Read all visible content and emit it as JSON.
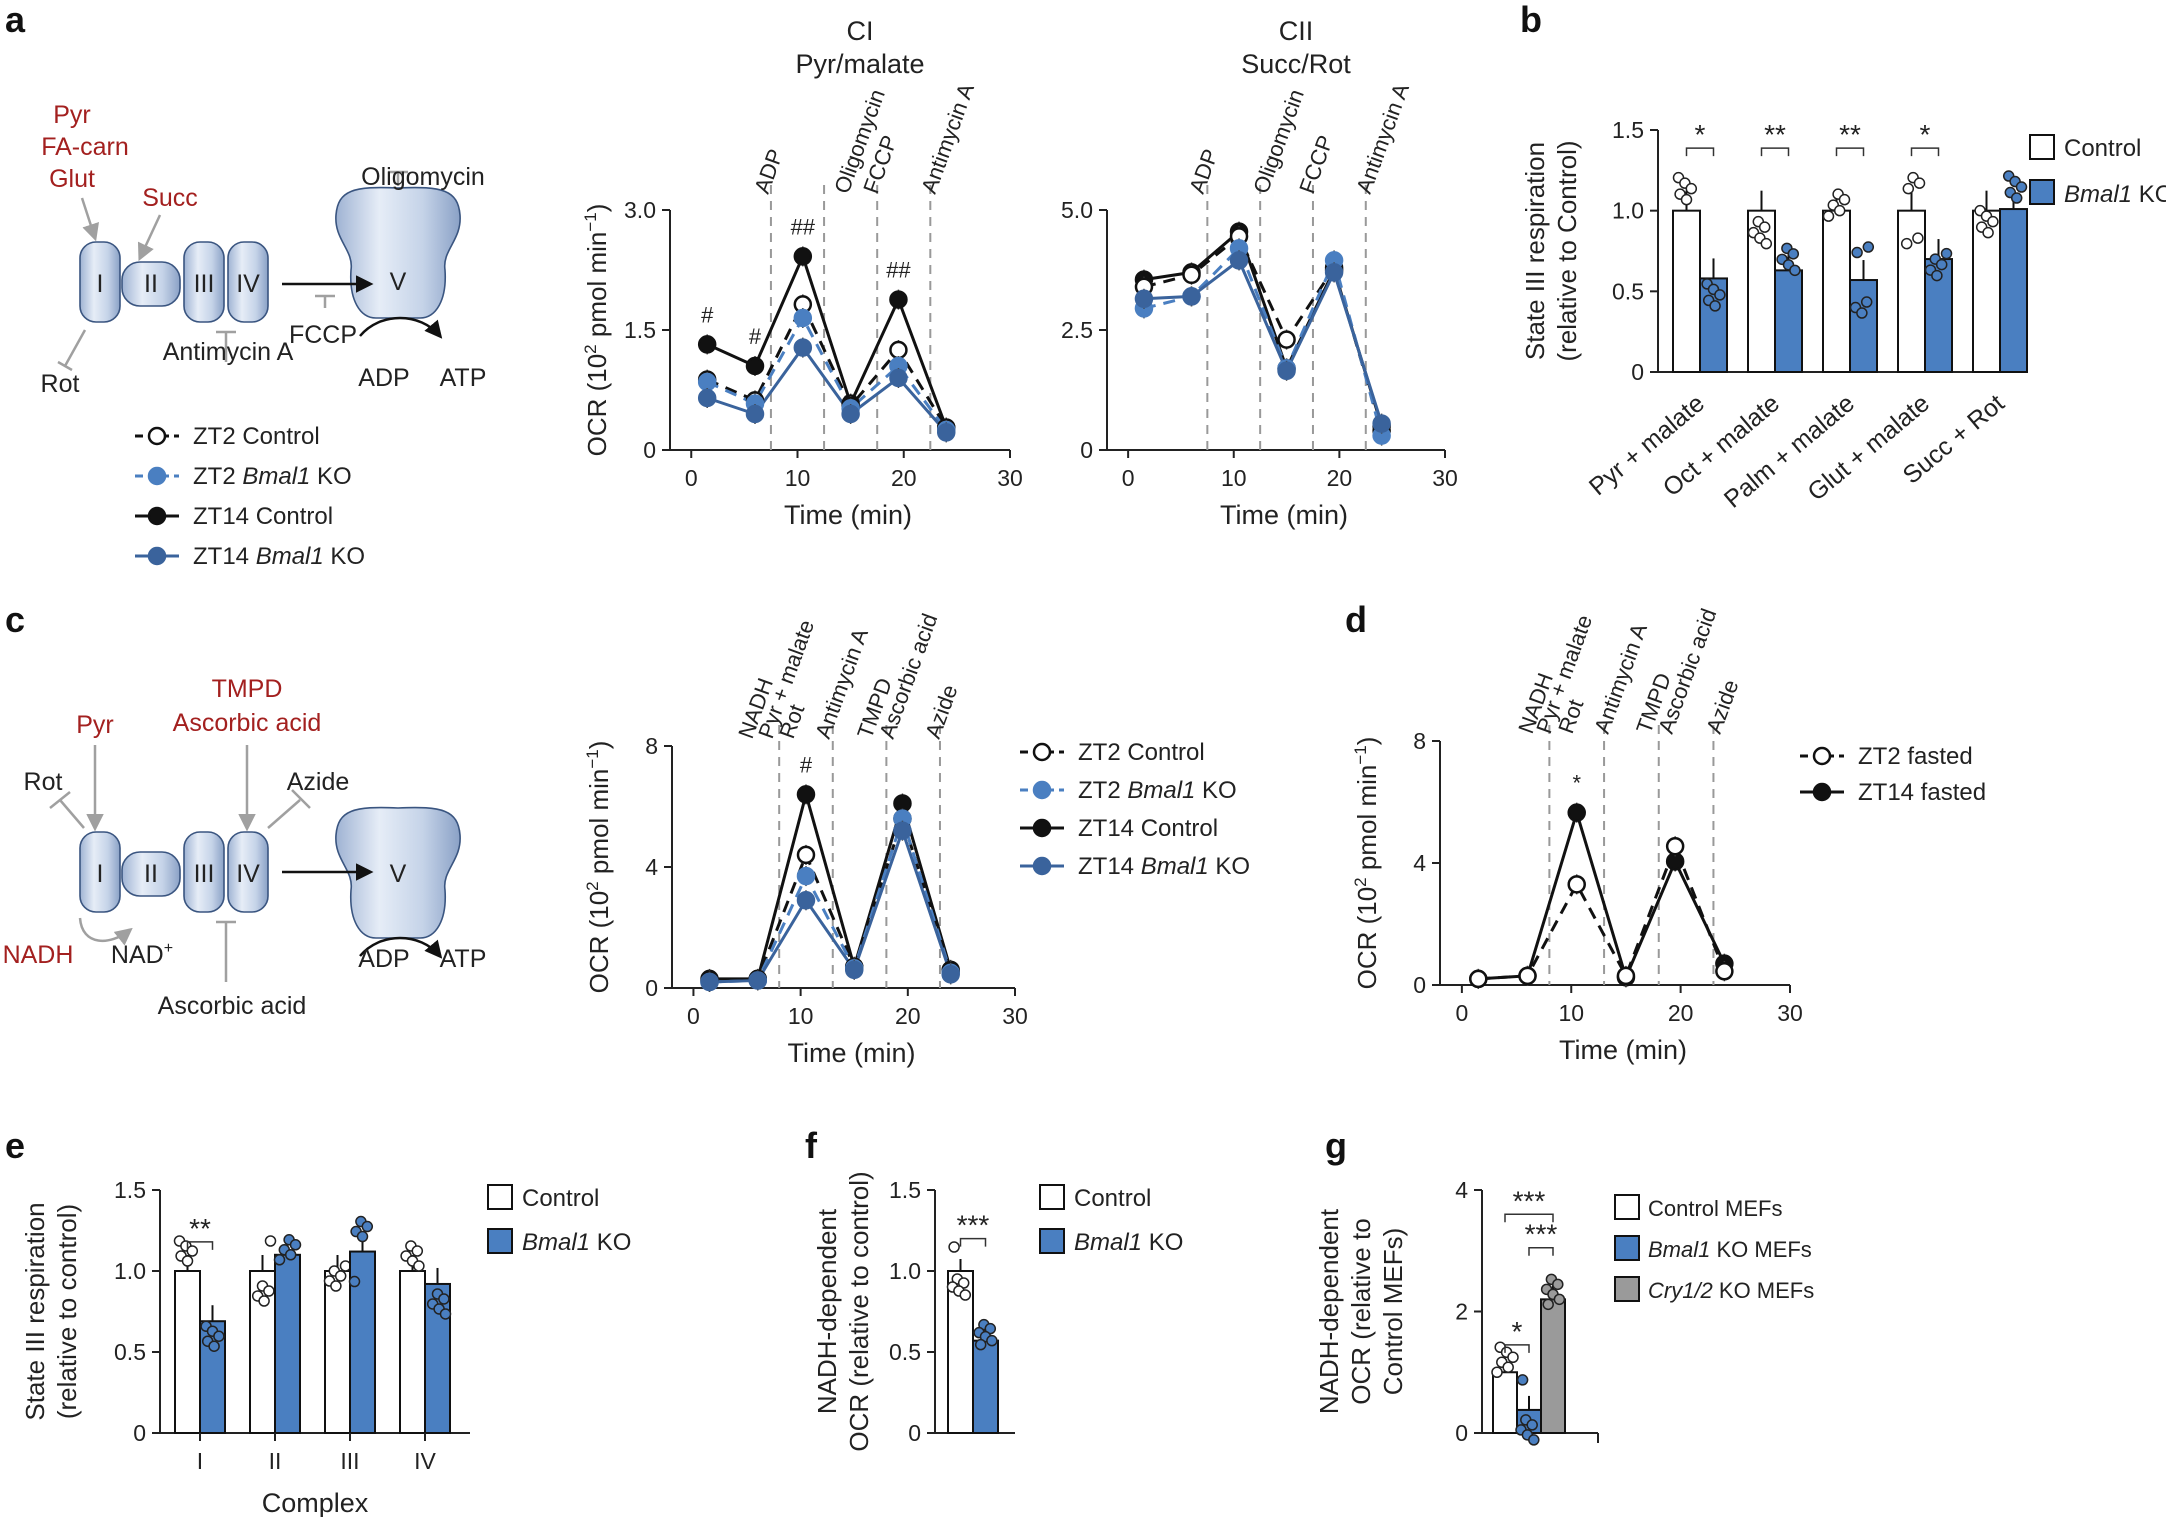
{
  "panels": {
    "a": "a",
    "b": "b",
    "c": "c",
    "d": "d",
    "e": "e",
    "f": "f",
    "g": "g"
  },
  "colors": {
    "ctl": "#ffffff",
    "ko": "#4a7fc1",
    "ko_dark": "#3a639c",
    "cry": "#9a9a9a",
    "black": "#111111",
    "red": "#a3201f"
  },
  "diagram_a": {
    "substrates_red": [
      "Pyr",
      "FA-carn",
      "Glut"
    ],
    "succ": "Succ",
    "complexes": [
      "I",
      "II",
      "III",
      "IV",
      "V"
    ],
    "rot": "Rot",
    "antimycin": "Antimycin A",
    "oligomycin": "Oligomycin",
    "fccp": "FCCP",
    "adp": "ADP",
    "atp": "ATP"
  },
  "diagram_c": {
    "pyr": "Pyr",
    "tmpd": "TMPD",
    "asc": "Ascorbic acid",
    "rot": "Rot",
    "azide": "Azide",
    "nadh": "NADH",
    "nad": "NAD",
    "nad_sup": "+",
    "asc_bottom": "Ascorbic acid",
    "complexes": [
      "I",
      "II",
      "III",
      "IV",
      "V"
    ],
    "adp": "ADP",
    "atp": "ATP"
  },
  "legend_a": [
    {
      "name": "ZT2 ",
      "ital": "",
      "after": "Control"
    },
    {
      "name": "ZT2 ",
      "ital": "Bmal1",
      "after": " KO"
    },
    {
      "name": "ZT14 ",
      "ital": "",
      "after": "Control"
    },
    {
      "name": "ZT14 ",
      "ital": "Bmal1",
      "after": " KO"
    }
  ],
  "legend_c": [
    {
      "name": "ZT2 ",
      "ital": "",
      "after": "Control"
    },
    {
      "name": "ZT2 ",
      "ital": "Bmal1",
      "after": " KO"
    },
    {
      "name": "ZT14 ",
      "ital": "",
      "after": "Control"
    },
    {
      "name": "ZT14 ",
      "ital": "Bmal1",
      "after": " KO"
    }
  ],
  "legend_d": [
    "ZT2 fasted",
    "ZT14 fasted"
  ],
  "legend_bef": {
    "control": "Control",
    "ko_ital": "Bmal1",
    "ko_after": " KO"
  },
  "legend_g": [
    {
      "ital": "",
      "after": "Control MEFs"
    },
    {
      "ital": "Bmal1",
      "after": " KO MEFs"
    },
    {
      "ital": "Cry1/2",
      "after": " KO MEFs"
    }
  ],
  "chart_data": [
    {
      "id": "a1",
      "type": "line",
      "title": [
        "CI",
        "Pyr/malate"
      ],
      "xlabel": "Time (min)",
      "ylabel_base": "OCR (10",
      "ylabel_sup": "2",
      "ylabel_mid": " pmol min",
      "ylabel_sup2": "−1",
      "ylabel_end": ")",
      "xlim": [
        -2,
        30
      ],
      "ylim": [
        0,
        3.0
      ],
      "xticks": [
        "0",
        "10",
        "20",
        "30"
      ],
      "yticks": [
        "0",
        "1.5",
        "3.0"
      ],
      "injections": [
        "ADP",
        "Oligomycin",
        "FCCP",
        "Antimycin A"
      ],
      "x": [
        1.5,
        6,
        10.5,
        15,
        19.5,
        24
      ],
      "series": [
        {
          "name": "ZT2 Control",
          "values": [
            0.88,
            0.62,
            1.82,
            0.55,
            1.25,
            0.28
          ]
        },
        {
          "name": "ZT2 Bmal1 KO",
          "values": [
            0.85,
            0.58,
            1.65,
            0.52,
            1.05,
            0.25
          ]
        },
        {
          "name": "ZT14 Control",
          "values": [
            1.32,
            1.05,
            2.42,
            0.58,
            1.88,
            0.28
          ]
        },
        {
          "name": "ZT14 Bmal1 KO",
          "values": [
            0.65,
            0.45,
            1.28,
            0.45,
            0.9,
            0.22
          ]
        }
      ],
      "annotations": [
        "#",
        "#",
        "##",
        "##"
      ]
    },
    {
      "id": "a2",
      "type": "line",
      "title": [
        "CII",
        "Succ/Rot"
      ],
      "xlabel": "Time (min)",
      "xlim": [
        -2,
        30
      ],
      "ylim": [
        0,
        5.0
      ],
      "xticks": [
        "0",
        "10",
        "20",
        "30"
      ],
      "yticks": [
        "0",
        "2.5",
        "5.0"
      ],
      "injections": [
        "ADP",
        "Oligomycin",
        "FCCP",
        "Antimycin A"
      ],
      "x": [
        1.5,
        6,
        10.5,
        15,
        19.5,
        24
      ],
      "series": [
        {
          "name": "ZT2 Control",
          "values": [
            3.4,
            3.65,
            4.45,
            2.3,
            3.8,
            0.4
          ]
        },
        {
          "name": "ZT2 Bmal1 KO",
          "values": [
            2.95,
            3.2,
            4.2,
            1.7,
            3.95,
            0.3
          ]
        },
        {
          "name": "ZT14 Control",
          "values": [
            3.55,
            3.7,
            4.55,
            1.7,
            3.75,
            0.5
          ]
        },
        {
          "name": "ZT14 Bmal1 KO",
          "values": [
            3.15,
            3.2,
            3.95,
            1.65,
            3.7,
            0.55
          ]
        }
      ]
    },
    {
      "id": "b",
      "type": "bar",
      "ylabel": [
        "State III respiration",
        "(relative to Control)"
      ],
      "ylim": [
        0,
        1.5
      ],
      "yticks": [
        "0",
        "0.5",
        "1.0",
        "1.5"
      ],
      "categories": [
        "Pyr + malate",
        "Oct + malate",
        "Palm + malate",
        "Glut + malate",
        "Succ + Rot"
      ],
      "series": [
        {
          "name": "Control",
          "values": [
            1.0,
            1.0,
            1.0,
            1.0,
            1.0
          ]
        },
        {
          "name": "Bmal1 KO",
          "values": [
            0.58,
            0.63,
            0.57,
            0.7,
            1.01
          ]
        }
      ],
      "significance": [
        "*",
        "**",
        "**",
        "*",
        ""
      ]
    },
    {
      "id": "c",
      "type": "line",
      "xlabel": "Time (min)",
      "ylabel_base": "OCR (10",
      "ylabel_sup": "2",
      "ylabel_mid": " pmol min",
      "ylabel_sup2": "−1",
      "ylabel_end": ")",
      "xlim": [
        -2,
        30
      ],
      "ylim": [
        0,
        8
      ],
      "xticks": [
        "0",
        "10",
        "20",
        "30"
      ],
      "yticks": [
        "0",
        "4",
        "8"
      ],
      "injections": [
        "NADH",
        "Pyr + malate",
        "Rot",
        "Antimycin A",
        "TMPD",
        "Ascorbic acid",
        "Azide"
      ],
      "x": [
        1.5,
        6,
        10.5,
        15,
        19.5,
        24
      ],
      "series": [
        {
          "name": "ZT2 Control",
          "values": [
            0.25,
            0.3,
            4.4,
            0.7,
            5.6,
            0.55
          ]
        },
        {
          "name": "ZT2 Bmal1 KO",
          "values": [
            0.2,
            0.25,
            3.7,
            0.65,
            5.6,
            0.5
          ]
        },
        {
          "name": "ZT14 Control",
          "values": [
            0.3,
            0.3,
            6.4,
            0.7,
            6.1,
            0.6
          ]
        },
        {
          "name": "ZT14 Bmal1 KO",
          "values": [
            0.2,
            0.25,
            2.9,
            0.6,
            5.2,
            0.45
          ]
        }
      ],
      "annotations": [
        "#"
      ]
    },
    {
      "id": "d",
      "type": "line",
      "xlabel": "Time (min)",
      "ylabel_base": "OCR (10",
      "ylabel_sup": "2",
      "ylabel_mid": " pmol min",
      "ylabel_sup2": "−1",
      "ylabel_end": ")",
      "xlim": [
        -2,
        30
      ],
      "ylim": [
        0,
        8
      ],
      "xticks": [
        "0",
        "10",
        "20",
        "30"
      ],
      "yticks": [
        "0",
        "4",
        "8"
      ],
      "injections": [
        "NADH",
        "Pyr + malate",
        "Rot",
        "Antimycin A",
        "TMPD",
        "Ascorbic acid",
        "Azide"
      ],
      "x": [
        1.5,
        6,
        10.5,
        15,
        19.5,
        24
      ],
      "series": [
        {
          "name": "ZT2 fasted",
          "values": [
            0.2,
            0.3,
            3.3,
            0.3,
            4.55,
            0.45
          ]
        },
        {
          "name": "ZT14 fasted",
          "values": [
            0.2,
            0.3,
            5.65,
            0.25,
            4.05,
            0.7
          ]
        }
      ],
      "annotations": [
        "*"
      ]
    },
    {
      "id": "e",
      "type": "bar",
      "ylabel": [
        "State III respiration",
        "(relative to control)"
      ],
      "xlabel": "Complex",
      "ylim": [
        0,
        1.5
      ],
      "yticks": [
        "0",
        "0.5",
        "1.0",
        "1.5"
      ],
      "categories": [
        "I",
        "II",
        "III",
        "IV"
      ],
      "series": [
        {
          "name": "Control",
          "values": [
            1.0,
            1.0,
            1.0,
            1.0
          ]
        },
        {
          "name": "Bmal1 KO",
          "values": [
            0.69,
            1.1,
            1.12,
            0.92
          ]
        }
      ],
      "significance": [
        "**",
        "",
        "",
        ""
      ]
    },
    {
      "id": "f",
      "type": "bar",
      "ylabel": [
        "NADH-dependent",
        "OCR (relative to control)"
      ],
      "ylim": [
        0,
        1.5
      ],
      "yticks": [
        "0",
        "0.5",
        "1.0",
        "1.5"
      ],
      "categories": [
        ""
      ],
      "series": [
        {
          "name": "Control",
          "values": [
            1.0
          ]
        },
        {
          "name": "Bmal1 KO",
          "values": [
            0.57
          ]
        }
      ],
      "significance": [
        "***"
      ]
    },
    {
      "id": "g",
      "type": "bar",
      "ylabel": [
        "NADH-dependent",
        "OCR (relative to",
        "Control MEFs)"
      ],
      "ylim": [
        0,
        4
      ],
      "yticks": [
        "0",
        "2",
        "4"
      ],
      "categories": [
        ""
      ],
      "series": [
        {
          "name": "Control MEFs",
          "values": [
            1.0
          ]
        },
        {
          "name": "Bmal1 KO MEFs",
          "values": [
            0.38
          ]
        },
        {
          "name": "Cry1/2 KO MEFs",
          "values": [
            2.2
          ]
        }
      ],
      "significance": [
        "*",
        "***",
        "***"
      ]
    }
  ]
}
